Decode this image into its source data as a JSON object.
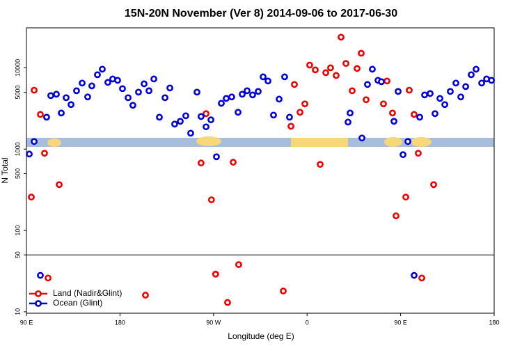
{
  "chart_data": {
    "type": "scatter",
    "title": "15N-20N November (Ver 8)   2014-09-06 to 2017-06-30",
    "x_label": "Longitude (deg E)",
    "y_label": "N Total",
    "xlim": [
      90,
      540
    ],
    "xticks": [
      {
        "value": 90,
        "label": "90 E"
      },
      180,
      {
        "value": 270,
        "label": "90 W"
      },
      {
        "value": 360,
        "label": "0"
      },
      {
        "value": 450,
        "label": "90 E"
      },
      180
    ],
    "ylim": [
      9.6,
      31000
    ],
    "yticks": [
      10,
      50,
      100,
      500,
      1000,
      5000,
      10000
    ],
    "log_y": true,
    "legend": "lower left",
    "series": [
      {
        "name": "Land (Nadir&Glint)",
        "color": "#ee0000",
        "x": [
          97.4,
          103.4,
          107.4,
          94.7,
          121.5,
          110.8,
          204.5,
          258,
          262.8,
          268,
          272,
          283.5,
          288.9,
          294.2,
          337.1,
          344.5,
          347.8,
          353.2,
          357.9,
          362.5,
          367.9,
          372.6,
          378,
          382.6,
          388,
          392.7,
          397.4,
          403.4,
          408.1,
          412.1,
          416.8,
          433.5,
          436.9,
          442.2,
          445.6,
          455,
          458.3,
          463,
          467,
          470.4,
          481.8
        ],
        "values": [
          5300,
          2670,
          890,
          257,
          366,
          26,
          16,
          675,
          2730,
          238,
          29,
          13,
          690,
          38,
          18,
          1910,
          6240,
          2840,
          3600,
          10800,
          9430,
          649,
          8710,
          10000,
          8050,
          23800,
          11300,
          5220,
          9800,
          15100,
          4050,
          3600,
          6880,
          2780,
          151,
          257,
          5300,
          2670,
          890,
          26,
          366
        ]
      },
      {
        "name": "Ocean (Glint)",
        "color": "#0000dd",
        "x": [
          92.7,
          97.4,
          103.4,
          109.4,
          113.4,
          118.8,
          123.5,
          128.2,
          132.9,
          138.2,
          143.6,
          148.9,
          152.9,
          158.3,
          163,
          168.3,
          173,
          177.7,
          182.4,
          187.8,
          192.4,
          197.8,
          203.2,
          207.9,
          212.6,
          217.9,
          223.3,
          228,
          232.6,
          238,
          243.3,
          248,
          254.1,
          258,
          262.8,
          267.5,
          272.8,
          277.5,
          282.2,
          287.5,
          293.6,
          297.6,
          302.3,
          307.6,
          313,
          317.7,
          322.4,
          327.7,
          333.1,
          338.4,
          343.1,
          399.4,
          401.4,
          412.8,
          418.1,
          422.8,
          428.2,
          431.5,
          443.6,
          447.6,
          452.3,
          457,
          463,
          468.4,
          473.1,
          478.4,
          483.1,
          487.8,
          492.5,
          497.8,
          503.2,
          507.9,
          512.6,
          517.9,
          522.6,
          528,
          532.7,
          537.4
        ],
        "values": [
          870,
          1240,
          28,
          2470,
          4550,
          4730,
          2780,
          4290,
          3530,
          5220,
          6490,
          4380,
          5990,
          8220,
          9610,
          6620,
          7290,
          7010,
          5540,
          4290,
          3460,
          5020,
          6350,
          5220,
          7290,
          2470,
          4290,
          5650,
          2030,
          2200,
          2570,
          1570,
          5020,
          2520,
          1880,
          2290,
          805,
          3660,
          4200,
          4380,
          2840,
          4730,
          5220,
          4640,
          5120,
          7740,
          6880,
          2620,
          4120,
          7740,
          2470,
          2150,
          2780,
          1370,
          6240,
          9610,
          7010,
          6750,
          2200,
          5120,
          855,
          1240,
          28,
          2470,
          4640,
          4830,
          2730,
          4200,
          3530,
          5120,
          6490,
          4380,
          5880,
          8220,
          9610,
          6490,
          7290,
          7010
        ]
      }
    ]
  }
}
